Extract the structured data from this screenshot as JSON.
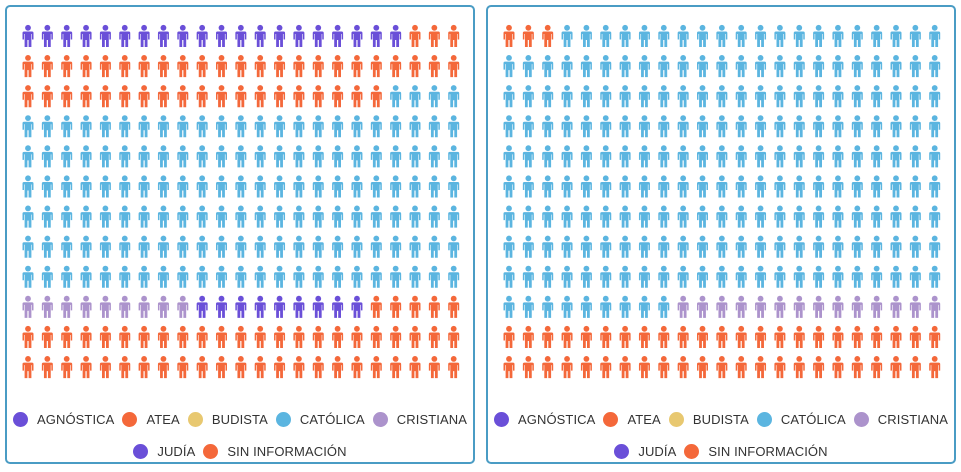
{
  "categories": [
    {
      "key": "agnostica",
      "label": "AGNÓSTICA",
      "color": "#6a4fd8"
    },
    {
      "key": "atea",
      "label": "ATEA",
      "color": "#f4683a"
    },
    {
      "key": "budista",
      "label": "BUDISTA",
      "color": "#e8c870"
    },
    {
      "key": "catolica",
      "label": "CATÓLICA",
      "color": "#5bb5e0"
    },
    {
      "key": "cristiana",
      "label": "CRISTIANA",
      "color": "#ac93cc"
    },
    {
      "key": "judia",
      "label": "JUDÍA",
      "color": "#6a4fd8"
    },
    {
      "key": "sin_informacion",
      "label": "SIN INFORMACIÓN",
      "color": "#f4683a"
    }
  ],
  "chart_data": [
    {
      "type": "waffle",
      "name": "left",
      "columns": 23,
      "rows": 12,
      "total_icons": 276,
      "fill_order": [
        "agnostica",
        "atea",
        "catolica",
        "cristiana",
        "judia",
        "sin_informacion"
      ],
      "values": {
        "agnostica": 20,
        "atea": 45,
        "budista": 0,
        "catolica": 142,
        "cristiana": 9,
        "judia": 9,
        "sin_informacion": 51
      },
      "legend": [
        "AGNÓSTICA",
        "ATEA",
        "BUDISTA",
        "CATÓLICA",
        "CRISTIANA",
        "JUDÍA",
        "SIN INFORMACIÓN"
      ],
      "legend_placement": "bottom"
    },
    {
      "type": "waffle",
      "name": "right",
      "columns": 23,
      "rows": 12,
      "total_icons": 276,
      "fill_order": [
        "atea",
        "catolica",
        "cristiana",
        "sin_informacion"
      ],
      "values": {
        "agnostica": 0,
        "atea": 3,
        "budista": 0,
        "catolica": 213,
        "cristiana": 14,
        "judia": 0,
        "sin_informacion": 46
      },
      "legend": [
        "AGNÓSTICA",
        "ATEA",
        "BUDISTA",
        "CATÓLICA",
        "CRISTIANA",
        "JUDÍA",
        "SIN INFORMACIÓN"
      ],
      "legend_placement": "bottom"
    }
  ]
}
